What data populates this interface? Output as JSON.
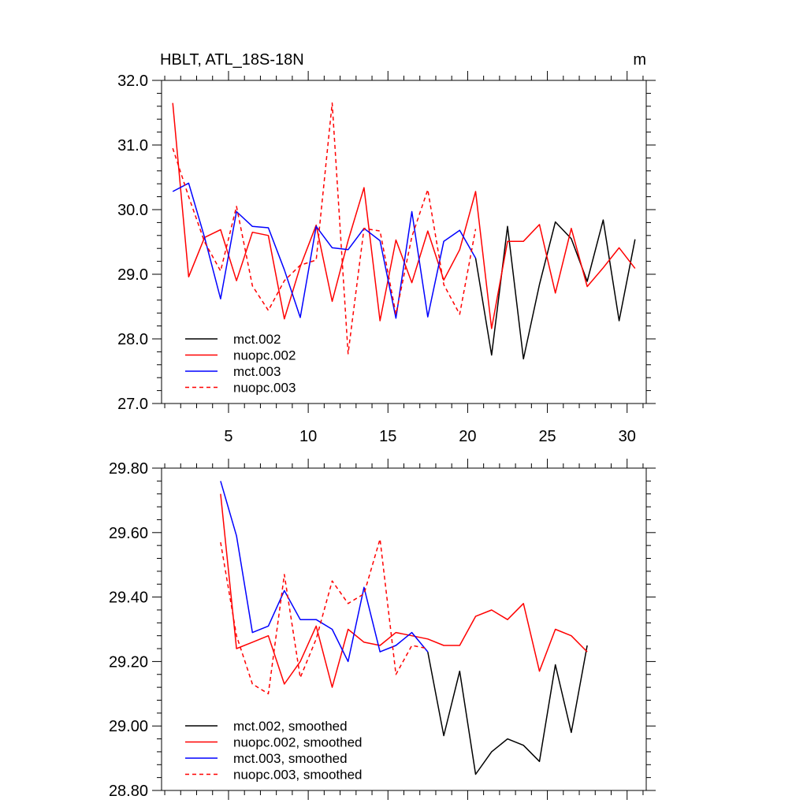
{
  "chart_data": [
    {
      "type": "line",
      "title": "HBLT, ATL_18S-18N",
      "units": "m",
      "ylim": [
        27.0,
        32.0
      ],
      "xlim": [
        0.8,
        31.2
      ],
      "yticks": [
        "27.0",
        "28.0",
        "29.0",
        "30.0",
        "31.0",
        "32.0"
      ],
      "xticks": [
        "5",
        "10",
        "15",
        "20",
        "25",
        "30"
      ],
      "legend_position": "bottom-left",
      "series": [
        {
          "name": "mct.002",
          "color": "#000000",
          "dash": "solid",
          "x": [
            20.5,
            21.5,
            22.5,
            23.5,
            24.5,
            25.5,
            26.5,
            27.5,
            28.5,
            29.5,
            30.5
          ],
          "y": [
            29.25,
            27.75,
            29.74,
            27.69,
            28.84,
            29.81,
            29.55,
            28.89,
            29.84,
            28.28,
            29.54
          ]
        },
        {
          "name": "nuopc.002",
          "color": "#ff0000",
          "dash": "solid",
          "x": [
            1.5,
            2.5,
            3.5,
            4.5,
            5.5,
            6.5,
            7.5,
            8.5,
            9.5,
            10.5,
            11.5,
            12.5,
            13.5,
            14.5,
            15.5,
            16.5,
            17.5,
            18.5,
            19.5,
            20.5,
            21.5,
            22.5,
            23.5,
            24.5,
            25.5,
            26.5,
            27.5,
            28.5,
            29.5,
            30.5
          ],
          "y": [
            31.65,
            28.96,
            29.57,
            29.69,
            28.9,
            29.65,
            29.6,
            28.31,
            29.12,
            29.76,
            28.58,
            29.52,
            30.34,
            28.28,
            29.53,
            28.87,
            29.67,
            28.91,
            29.38,
            30.28,
            28.16,
            29.51,
            29.51,
            29.77,
            28.71,
            29.71,
            28.81,
            29.1,
            29.41,
            29.09
          ]
        },
        {
          "name": "mct.003",
          "color": "#0000ff",
          "dash": "solid",
          "x": [
            1.5,
            2.5,
            3.5,
            4.5,
            5.5,
            6.5,
            7.5,
            8.5,
            9.5,
            10.5,
            11.5,
            12.5,
            13.5,
            14.5,
            15.5,
            16.5,
            17.5,
            18.5,
            19.5,
            20.5
          ],
          "y": [
            30.28,
            30.41,
            29.57,
            28.62,
            29.97,
            29.74,
            29.72,
            29.07,
            28.33,
            29.74,
            29.41,
            29.38,
            29.71,
            29.52,
            28.32,
            29.97,
            28.34,
            29.51,
            29.68,
            29.25
          ]
        },
        {
          "name": "nuopc.003",
          "color": "#ff0000",
          "dash": "dashed",
          "x": [
            1.5,
            2.5,
            3.5,
            4.5,
            5.5,
            6.5,
            7.5,
            8.5,
            9.5,
            10.5,
            11.5,
            12.5,
            13.5,
            14.5,
            15.5,
            16.5,
            17.5,
            18.5,
            19.5,
            20.5
          ],
          "y": [
            30.95,
            30.2,
            29.5,
            29.05,
            30.05,
            28.82,
            28.44,
            28.9,
            29.14,
            29.22,
            31.65,
            27.77,
            29.71,
            29.67,
            28.38,
            29.58,
            30.31,
            28.84,
            28.38,
            29.7
          ]
        }
      ]
    },
    {
      "type": "line",
      "title": "",
      "ylim": [
        28.8,
        29.8
      ],
      "xlim": [
        0.8,
        31.2
      ],
      "yticks": [
        "28.80",
        "29.00",
        "29.20",
        "29.40",
        "29.60",
        "29.80"
      ],
      "xticks": [],
      "legend_position": "bottom-left",
      "series": [
        {
          "name": "mct.002, smoothed",
          "color": "#000000",
          "dash": "solid",
          "x": [
            17.5,
            18.5,
            19.5,
            20.5,
            21.5,
            22.5,
            23.5,
            24.5,
            25.5,
            26.5,
            27.5
          ],
          "y": [
            29.23,
            28.97,
            29.17,
            28.85,
            28.92,
            28.96,
            28.94,
            28.89,
            29.19,
            28.98,
            29.25
          ]
        },
        {
          "name": "nuopc.002, smoothed",
          "color": "#ff0000",
          "dash": "solid",
          "x": [
            4.5,
            5.5,
            6.5,
            7.5,
            8.5,
            9.5,
            10.5,
            11.5,
            12.5,
            13.5,
            14.5,
            15.5,
            16.5,
            17.5,
            18.5,
            19.5,
            20.5,
            21.5,
            22.5,
            23.5,
            24.5,
            25.5,
            26.5,
            27.5
          ],
          "y": [
            29.72,
            29.24,
            29.26,
            29.28,
            29.13,
            29.2,
            29.31,
            29.12,
            29.3,
            29.26,
            29.25,
            29.29,
            29.28,
            29.27,
            29.25,
            29.25,
            29.34,
            29.36,
            29.33,
            29.38,
            29.17,
            29.3,
            29.28,
            29.23
          ]
        },
        {
          "name": "mct.003, smoothed",
          "color": "#0000ff",
          "dash": "solid",
          "x": [
            4.5,
            5.5,
            6.5,
            7.5,
            8.5,
            9.5,
            10.5,
            11.5,
            12.5,
            13.5,
            14.5,
            15.5,
            16.5,
            17.5
          ],
          "y": [
            29.76,
            29.59,
            29.29,
            29.31,
            29.42,
            29.33,
            29.33,
            29.3,
            29.2,
            29.43,
            29.23,
            29.25,
            29.29,
            29.23
          ]
        },
        {
          "name": "nuopc.003, smoothed",
          "color": "#ff0000",
          "dash": "dashed",
          "x": [
            4.5,
            5.5,
            6.5,
            7.5,
            8.5,
            9.5,
            10.5,
            11.5,
            12.5,
            13.5,
            14.5,
            15.5,
            16.5,
            17.5
          ],
          "y": [
            29.57,
            29.28,
            29.13,
            29.1,
            29.47,
            29.15,
            29.27,
            29.45,
            29.38,
            29.41,
            29.58,
            29.16,
            29.25,
            29.24
          ]
        }
      ]
    }
  ]
}
